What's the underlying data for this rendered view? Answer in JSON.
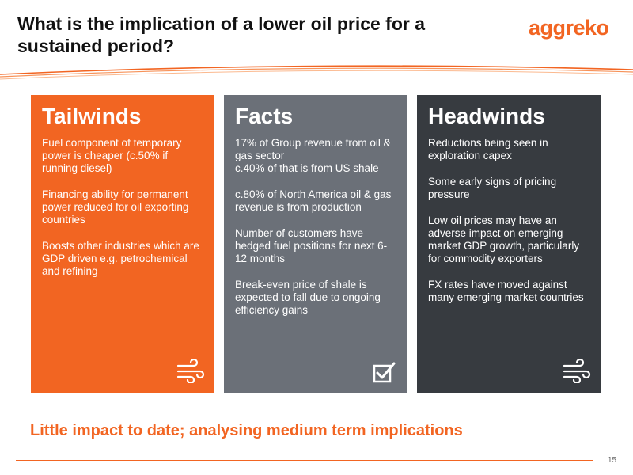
{
  "slide": {
    "title": "What is the implication of a lower oil price for a sustained period?",
    "logo_text": "aggreko",
    "tagline": "Little impact to date; analysing medium term implications",
    "page_number": "15"
  },
  "colors": {
    "accent": "#f26522",
    "facts_panel": "#6b7078",
    "headwinds_panel": "#373b40",
    "text_on_panel": "#ffffff"
  },
  "panels": {
    "tailwinds": {
      "heading": "Tailwinds",
      "items": [
        "Fuel component of temporary power is cheaper (c.50% if running diesel)",
        "Financing ability for permanent power reduced for oil exporting countries",
        "Boosts other industries which are GDP driven e.g. petrochemical and refining"
      ],
      "icon": "wind-icon"
    },
    "facts": {
      "heading": "Facts",
      "items": [
        "17% of Group revenue from oil & gas sector",
        "c.40% of that is from US shale",
        "c.80% of North America oil & gas revenue is from production",
        "Number of customers have hedged fuel positions for next 6-12 months",
        "Break-even price of shale is expected to fall due to ongoing efficiency gains"
      ],
      "icon": "checkbox-icon"
    },
    "headwinds": {
      "heading": "Headwinds",
      "items": [
        "Reductions being seen in exploration capex",
        "Some early signs of pricing pressure",
        "Low oil prices may have an adverse impact on emerging market GDP growth, particularly for commodity exporters",
        "FX rates have moved against many emerging market countries"
      ],
      "icon": "wind-icon"
    }
  }
}
